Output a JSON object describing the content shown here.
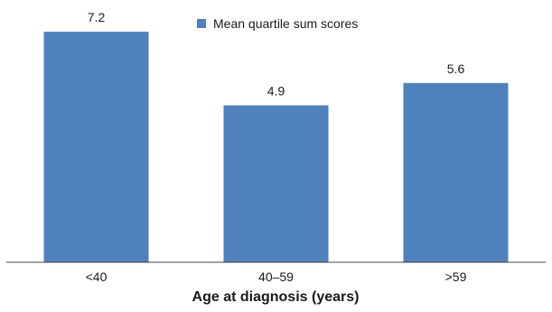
{
  "chart_data": {
    "type": "bar",
    "categories": [
      "<40",
      "40–59",
      ">59"
    ],
    "series": [
      {
        "name": "Mean quartile sum scores",
        "values": [
          7.2,
          4.9,
          5.6
        ],
        "color": "#4f81bd"
      }
    ],
    "xlabel": "Age at diagnosis (years)",
    "ylabel": "",
    "ylim": [
      0,
      8
    ],
    "grid": false,
    "legend": "top-center",
    "data_labels": [
      "7.2",
      "4.9",
      "5.6"
    ]
  }
}
